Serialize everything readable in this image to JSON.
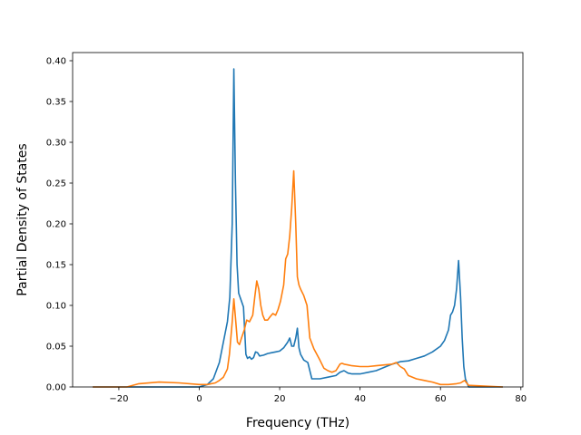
{
  "chart_data": {
    "type": "line",
    "title": "",
    "xlabel": "Frequency (THz)",
    "ylabel": "Partial Density of States",
    "xlim": [
      -31.5,
      80.5
    ],
    "ylim": [
      0.0,
      0.41
    ],
    "xticks": [
      -20,
      0,
      20,
      40,
      60,
      80
    ],
    "xtick_labels": [
      "−20",
      "0",
      "20",
      "40",
      "60",
      "80"
    ],
    "yticks": [
      0.0,
      0.05,
      0.1,
      0.15,
      0.2,
      0.25,
      0.3,
      0.35,
      0.4
    ],
    "ytick_labels": [
      "0.00",
      "0.05",
      "0.10",
      "0.15",
      "0.20",
      "0.25",
      "0.30",
      "0.35",
      "0.40"
    ],
    "grid": false,
    "legend": false,
    "series": [
      {
        "color": "#1f77b4",
        "x": [
          -26.5,
          -10,
          0,
          2,
          3.5,
          5,
          6,
          7,
          7.6,
          8.2,
          8.6,
          9.0,
          9.4,
          9.8,
          10.3,
          11,
          11.6,
          12,
          12.5,
          13,
          13.5,
          14,
          14.5,
          15,
          16,
          17,
          18,
          19,
          20,
          21,
          22,
          22.5,
          23,
          23.5,
          24,
          24.4,
          24.8,
          25.2,
          26,
          27,
          28,
          30,
          32,
          34,
          35,
          36,
          37,
          38,
          40,
          42,
          44,
          46,
          48,
          50,
          52,
          54,
          56,
          58,
          60,
          61,
          62,
          62.5,
          63,
          63.5,
          64,
          64.5,
          65.0,
          65.4,
          65.8,
          66.2,
          67,
          68,
          75.5
        ],
        "y": [
          0.0,
          0.0,
          0.0,
          0.003,
          0.01,
          0.03,
          0.055,
          0.08,
          0.11,
          0.2,
          0.39,
          0.25,
          0.15,
          0.115,
          0.108,
          0.098,
          0.04,
          0.035,
          0.037,
          0.034,
          0.036,
          0.043,
          0.042,
          0.038,
          0.039,
          0.041,
          0.042,
          0.043,
          0.044,
          0.048,
          0.055,
          0.06,
          0.05,
          0.05,
          0.06,
          0.072,
          0.048,
          0.04,
          0.033,
          0.03,
          0.01,
          0.01,
          0.012,
          0.014,
          0.018,
          0.02,
          0.017,
          0.016,
          0.016,
          0.018,
          0.02,
          0.024,
          0.028,
          0.031,
          0.032,
          0.035,
          0.038,
          0.043,
          0.05,
          0.057,
          0.07,
          0.088,
          0.092,
          0.1,
          0.12,
          0.155,
          0.11,
          0.06,
          0.025,
          0.01,
          0.0,
          0.0,
          0.0
        ]
      },
      {
        "color": "#ff7f0e",
        "x": [
          -26.5,
          -18,
          -15,
          -10,
          -5,
          0,
          2,
          4,
          5,
          6,
          7,
          7.5,
          8.2,
          8.6,
          9.0,
          9.5,
          10,
          10.5,
          11.2,
          11.8,
          12.5,
          13.3,
          13.8,
          14.3,
          14.8,
          15.3,
          15.8,
          16.3,
          17,
          17.6,
          18.3,
          19,
          19.6,
          20.2,
          21,
          21.5,
          22,
          22.5,
          23,
          23.5,
          24,
          24.4,
          24.8,
          25.2,
          26,
          26.8,
          27.5,
          28.5,
          30,
          31,
          32,
          33,
          34,
          35,
          35.5,
          36,
          37,
          38,
          40,
          42,
          44,
          46,
          48,
          49,
          50,
          51,
          52,
          54,
          56,
          58,
          60,
          62,
          64,
          65,
          66,
          67,
          75.5
        ],
        "y": [
          0.0,
          0.0,
          0.004,
          0.006,
          0.005,
          0.003,
          0.003,
          0.005,
          0.008,
          0.012,
          0.022,
          0.04,
          0.08,
          0.108,
          0.085,
          0.055,
          0.052,
          0.06,
          0.07,
          0.082,
          0.08,
          0.088,
          0.11,
          0.13,
          0.12,
          0.1,
          0.088,
          0.082,
          0.082,
          0.086,
          0.09,
          0.088,
          0.095,
          0.105,
          0.125,
          0.157,
          0.163,
          0.185,
          0.22,
          0.265,
          0.2,
          0.135,
          0.125,
          0.12,
          0.112,
          0.1,
          0.06,
          0.047,
          0.033,
          0.023,
          0.02,
          0.018,
          0.02,
          0.028,
          0.029,
          0.028,
          0.027,
          0.026,
          0.025,
          0.025,
          0.026,
          0.027,
          0.028,
          0.03,
          0.025,
          0.022,
          0.014,
          0.01,
          0.008,
          0.006,
          0.003,
          0.003,
          0.004,
          0.005,
          0.008,
          0.002,
          0.0
        ]
      }
    ]
  }
}
